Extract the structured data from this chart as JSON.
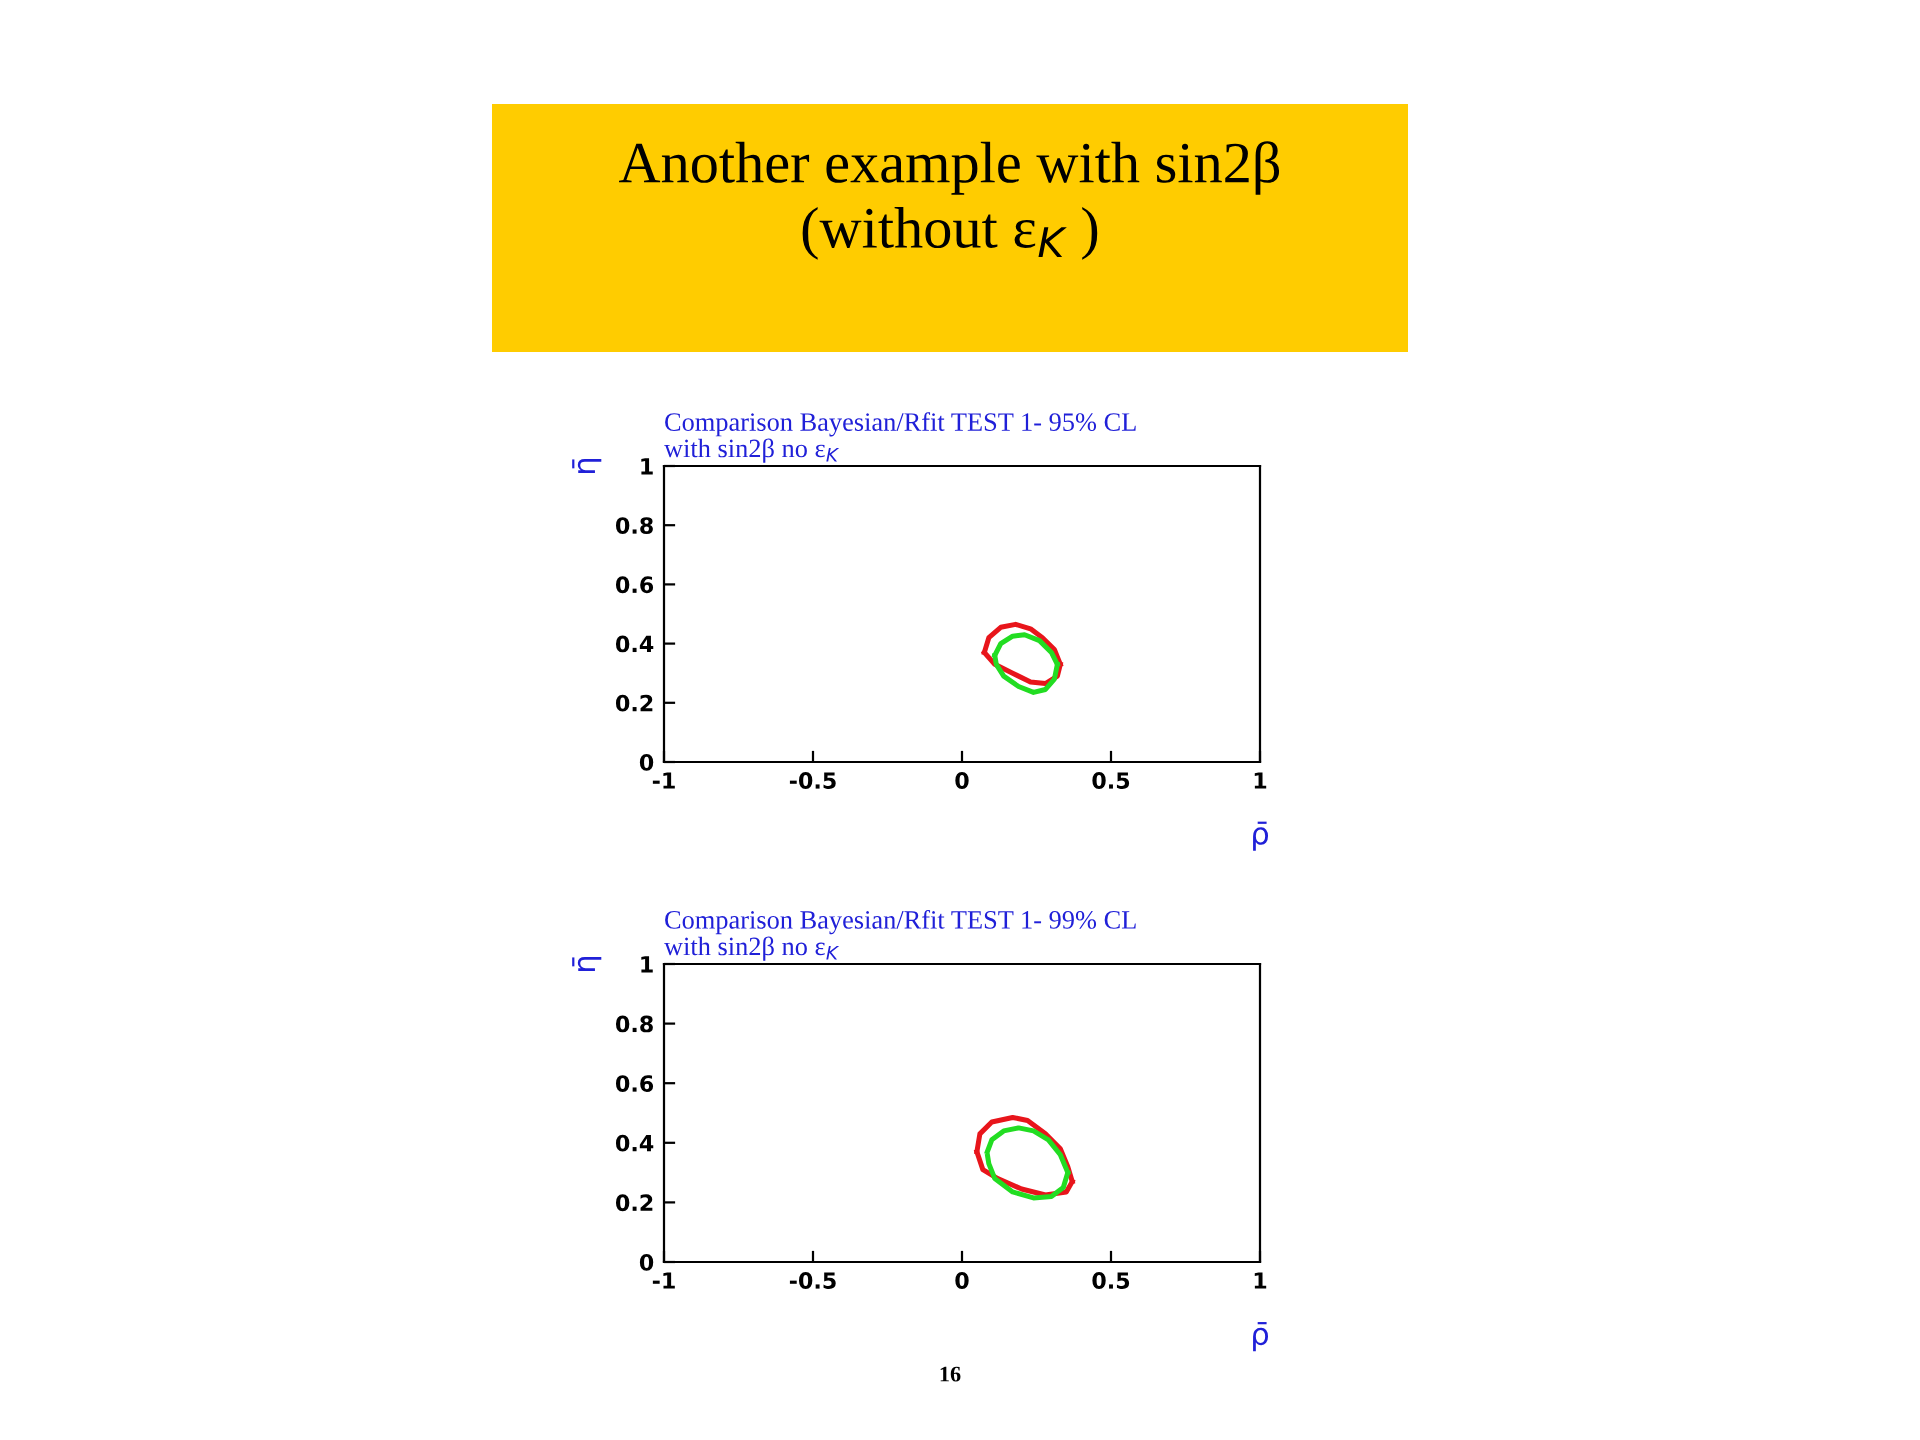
{
  "chart_data": [
    {
      "type": "other",
      "title": "Another example with sin2β\n(without ε$_{K}$ )",
      "annotations": [
        "16"
      ]
    },
    {
      "type": "line",
      "title": "Comparison Bayesian/Rfit TEST 1- 95% CL",
      "grid": false,
      "legend": false,
      "subtitle": "with sin2β no ε$_{K}$",
      "xlabel": "ρ̄",
      "ylabel": "η̄",
      "xlim": [
        -1,
        1
      ],
      "ylim": [
        0,
        1
      ],
      "xticks": [
        -1,
        -0.5,
        0,
        0.5,
        1
      ],
      "yticks": [
        0,
        0.2,
        0.4,
        0.6,
        0.8,
        1
      ],
      "series": [
        {
          "color": "#e8151b",
          "x": [
            0.075,
            0.09,
            0.13,
            0.18,
            0.23,
            0.27,
            0.31,
            0.33
          ],
          "values": [
            0.37,
            0.42,
            0.455,
            0.465,
            0.45,
            0.42,
            0.38,
            0.33
          ]
        },
        {
          "color": "#e8151b",
          "x": [
            0.075,
            0.11,
            0.17,
            0.23,
            0.28,
            0.32,
            0.33
          ],
          "values": [
            0.37,
            0.33,
            0.3,
            0.27,
            0.265,
            0.29,
            0.33
          ]
        },
        {
          "color": "#22dd22",
          "x": [
            0.11,
            0.13,
            0.17,
            0.21,
            0.26,
            0.3,
            0.32
          ],
          "values": [
            0.36,
            0.4,
            0.425,
            0.43,
            0.41,
            0.37,
            0.33
          ]
        },
        {
          "color": "#22dd22",
          "x": [
            0.11,
            0.115,
            0.14,
            0.19,
            0.24,
            0.28,
            0.31,
            0.32
          ],
          "values": [
            0.36,
            0.33,
            0.29,
            0.255,
            0.235,
            0.245,
            0.28,
            0.33
          ]
        }
      ]
    },
    {
      "type": "line",
      "title": "Comparison Bayesian/Rfit TEST 1- 99% CL",
      "grid": false,
      "legend": false,
      "subtitle": "with sin2β no ε$_{K}$",
      "xlabel": "ρ̄",
      "ylabel": "η̄",
      "xlim": [
        -1,
        1
      ],
      "ylim": [
        0,
        1
      ],
      "xticks": [
        -1,
        -0.5,
        0,
        0.5,
        1
      ],
      "yticks": [
        0,
        0.2,
        0.4,
        0.6,
        0.8,
        1
      ],
      "series": [
        {
          "color": "#e8151b",
          "x": [
            0.05,
            0.06,
            0.1,
            0.17,
            0.22,
            0.28,
            0.33,
            0.355,
            0.37
          ],
          "values": [
            0.37,
            0.43,
            0.47,
            0.485,
            0.475,
            0.43,
            0.38,
            0.32,
            0.27
          ]
        },
        {
          "color": "#e8151b",
          "x": [
            0.05,
            0.07,
            0.12,
            0.2,
            0.28,
            0.35,
            0.37
          ],
          "values": [
            0.37,
            0.31,
            0.28,
            0.245,
            0.225,
            0.235,
            0.27
          ]
        },
        {
          "color": "#22dd22",
          "x": [
            0.085,
            0.1,
            0.14,
            0.19,
            0.24,
            0.29,
            0.33,
            0.355
          ],
          "values": [
            0.37,
            0.41,
            0.44,
            0.45,
            0.44,
            0.41,
            0.36,
            0.3
          ]
        },
        {
          "color": "#22dd22",
          "x": [
            0.086,
            0.09,
            0.11,
            0.17,
            0.24,
            0.3,
            0.34,
            0.355
          ],
          "values": [
            0.355,
            0.33,
            0.28,
            0.235,
            0.215,
            0.22,
            0.25,
            0.3
          ]
        }
      ]
    }
  ]
}
